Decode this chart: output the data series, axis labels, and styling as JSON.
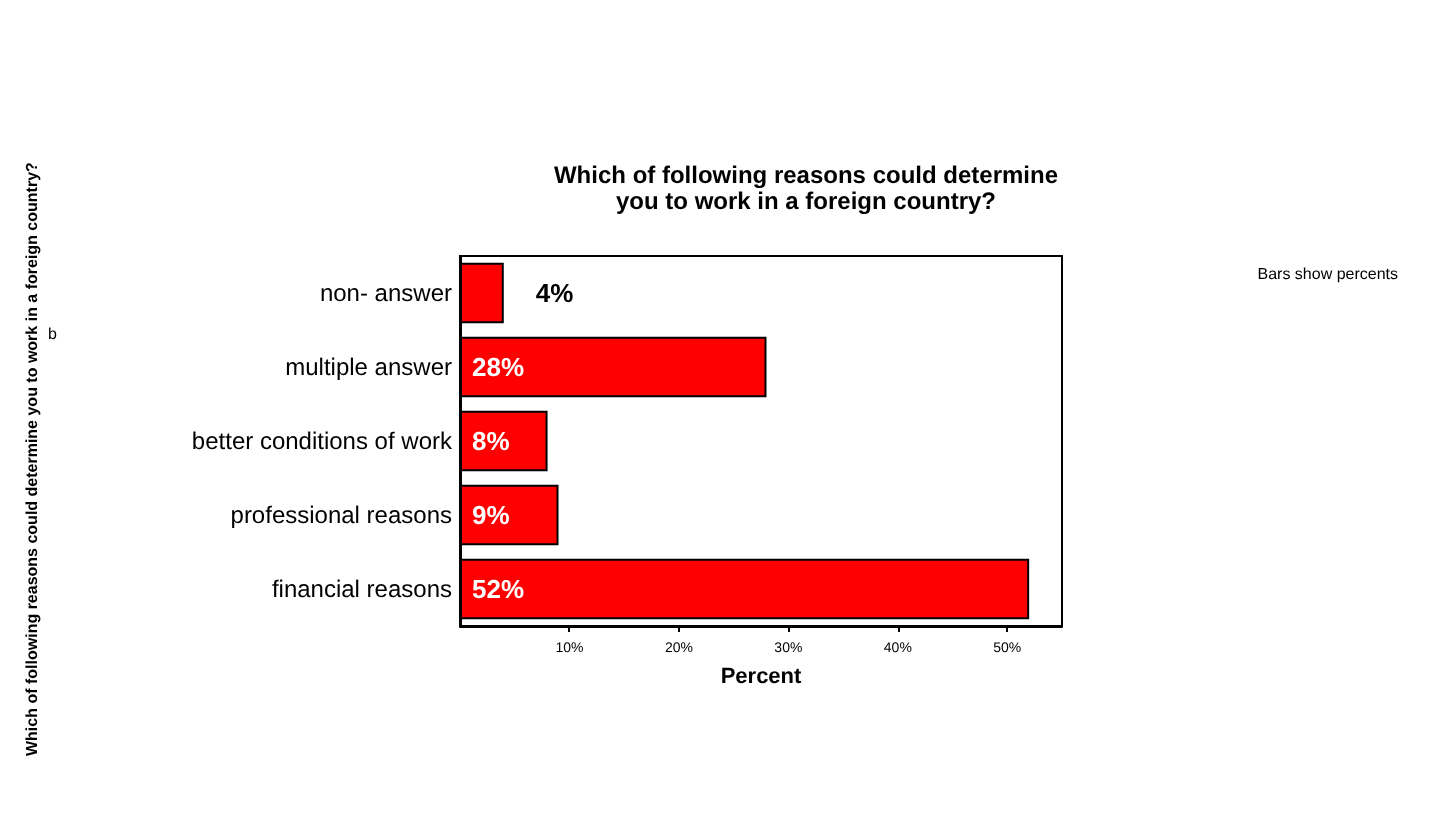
{
  "chart_data": {
    "type": "bar",
    "orientation": "horizontal",
    "title": "Which of following reasons could determine\nyou to work in a foreign country?",
    "xlabel": "Percent",
    "categories": [
      "non- answer",
      "multiple answer",
      "better conditions of work",
      "professional reasons",
      "financial reasons"
    ],
    "values": [
      4,
      28,
      8,
      9,
      52
    ],
    "color": "#ff0000",
    "value_labels": [
      "4%",
      "28%",
      "8%",
      "9%",
      "52%"
    ],
    "xlim": [
      0,
      55
    ],
    "xticks": [
      {
        "value": 10,
        "label": "10%"
      },
      {
        "value": 20,
        "label": "20%"
      },
      {
        "value": 30,
        "label": "30%"
      },
      {
        "value": 40,
        "label": "40%"
      },
      {
        "value": 50,
        "label": "50%"
      }
    ],
    "annotations": [
      "Which of following reasons could determine you to work in a foreign country?",
      "b",
      "Bars show percents"
    ],
    "grid": false
  }
}
